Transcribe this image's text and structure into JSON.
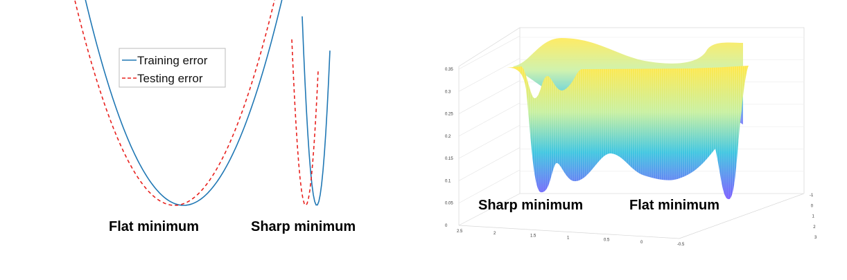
{
  "chart_data": [
    {
      "type": "line",
      "legend": {
        "position": "top",
        "entries": [
          {
            "name": "Training error",
            "color": "#1f77b4",
            "style": "solid"
          },
          {
            "name": "Testing error",
            "color": "#e8201d",
            "style": "dashed"
          }
        ]
      },
      "annotations": [
        "Flat minimum",
        "Sharp minimum"
      ],
      "grid": false,
      "axes_visible": false
    },
    {
      "type": "surface",
      "annotations": [
        "Sharp minimum",
        "Flat minimum"
      ],
      "z_ticks": [
        "0",
        "0.05",
        "0.1",
        "0.15",
        "0.2",
        "0.25",
        "0.3",
        "0.35"
      ],
      "x_ticks": [
        "2.5",
        "2",
        "1.5",
        "1",
        "0.5",
        "0",
        "-0.5"
      ],
      "y_ticks": [
        "-1",
        "0",
        "1",
        "2",
        "3"
      ],
      "zlim": [
        0,
        0.35
      ],
      "colormap": [
        "#7b5cff",
        "#3fc6e0",
        "#c7f0a0",
        "#ffe84a"
      ],
      "grid": true
    }
  ]
}
